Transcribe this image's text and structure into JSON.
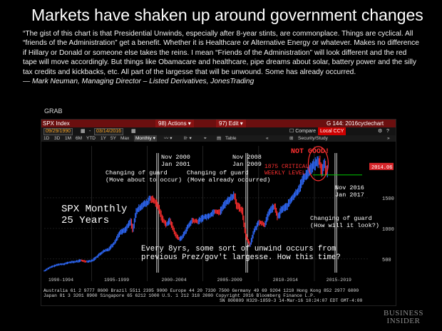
{
  "slide": {
    "title": "Markets have shaken up around government changes",
    "quote": "“The gist of this chart is that Presidential Unwinds, especially after 8-year stints, are commonplace. Things are cyclical.  All “friends of the Administration” get a benefit. Whether it is Healthcare or Alternative Energy or whatever. Makes no difference if Hillary or Donald or someone else takes the reins. I mean “Friends of the Administration” will look different and the red tape will move accordingly. But things like Obamacare and healthcare, pipe dreams about solar, battery power and the silly tax credits and kickbacks, etc.  All part of the largesse that will be unwound.  Some has already occurred.",
    "attribution": "— Mark Neuman, Managing Director – Listed Derivatives, JonesTrading",
    "grab_label": "GRAB",
    "publisher": [
      "BUSINESS",
      "INSIDER"
    ]
  },
  "terminal": {
    "ticker": "SPX Index",
    "actions_menu": "98) Actions ▾",
    "edit_menu": "97) Edit ▾",
    "page_code": "G 144: 2016cyclechart",
    "start_date": "09/29/1990",
    "end_date": "03/14/2016",
    "compare_label": "☐ Compare",
    "currency": "Local CCY",
    "security_study": "Security/Study",
    "table_label": "Table",
    "periods": [
      "1D",
      "3D",
      "1M",
      "6M",
      "YTD",
      "1Y",
      "5Y",
      "Max"
    ],
    "frequency": "Monthly ▾",
    "footer_line1": "Australia 61 2 9777 8600 Brazil 5511 2395 9000 Europe 44 20 7330 7500 Germany 49 69 9204 1210 Hong Kong 852 2977 6000",
    "footer_line2": "Japan 81 3 3201 8900           Singapore 65 6212 1000    U.S. 1 212 318 2000        Copyright 2016 Bloomberg Finance L.P.",
    "footer_line3": "SN 800809 H329-1859-3 14-Mar-16 10:24:07 EDT  GMT-4:00"
  },
  "chart_data": {
    "type": "line",
    "title": "SPX Monthly 25 Years",
    "title_lines": [
      "SPX Monthly",
      "25 Years"
    ],
    "x_ticks": [
      "1990-1994",
      "1995-1999",
      "2000-2004",
      "2005-2009",
      "2010-2014",
      "2015-2019"
    ],
    "x_range": [
      1990.75,
      2019.8
    ],
    "y_ticks": [
      500,
      1000,
      1500
    ],
    "y_range": [
      300,
      2350
    ],
    "last_price": "2014.06",
    "series": [
      {
        "x": [
          1990.75,
          1991.0,
          1991.5,
          1992.0,
          1992.5,
          1993.0,
          1993.5,
          1994.0,
          1994.5,
          1995.0,
          1995.5,
          1996.0,
          1996.5,
          1997.0,
          1997.5,
          1997.8,
          1998.0,
          1998.5,
          1998.65,
          1999.0,
          1999.5,
          2000.0,
          2000.2,
          2000.7,
          2001.0,
          2001.3,
          2001.7,
          2002.0,
          2002.5,
          2002.8,
          2003.1,
          2003.5,
          2004.0,
          2004.5,
          2005.0,
          2005.5,
          2006.0,
          2006.5,
          2007.0,
          2007.5,
          2007.8,
          2008.0,
          2008.5,
          2008.8,
          2009.0,
          2009.2,
          2009.5,
          2010.0,
          2010.5,
          2011.0,
          2011.4,
          2011.7,
          2012.0,
          2012.5,
          2013.0,
          2013.5,
          2014.0,
          2014.5,
          2015.0,
          2015.4,
          2015.65,
          2015.9,
          2016.05,
          2016.2
        ],
        "values": [
          306,
          340,
          380,
          410,
          420,
          445,
          455,
          475,
          460,
          470,
          545,
          620,
          660,
          760,
          930,
          960,
          980,
          1120,
          960,
          1280,
          1380,
          1420,
          1500,
          1430,
          1330,
          1160,
          1060,
          1130,
          900,
          830,
          850,
          990,
          1130,
          1110,
          1180,
          1200,
          1280,
          1270,
          1420,
          1500,
          1550,
          1380,
          1280,
          900,
          800,
          720,
          930,
          1110,
          1060,
          1300,
          1360,
          1170,
          1310,
          1360,
          1500,
          1620,
          1820,
          1950,
          2050,
          2110,
          1920,
          2080,
          1880,
          2014
        ]
      }
    ],
    "annotations": {
      "nov2000": "Nov 2000\nJan 2001",
      "guard1": "Changing of guard\n(Move about to occur)",
      "nov2008": "Nov 2008\nJan 2009",
      "guard2": "Changing of guard\n(Move already occurred)",
      "not_good": "NOT GOOD!",
      "critical": "1875 CRITICAL\nWEEKLY LEVEL",
      "nov2016": "Nov 2016\nJan 2017",
      "guard3": "Changing of guard\n(How will it look?)",
      "unwind": "Every 8yrs, some sort of unwind occurs from\nprevious Prez/gov't largesse.  How this time?"
    },
    "colors": {
      "up": "#2f6bff",
      "down": "#ff2d2d",
      "critical_line": "#00c800",
      "annotation_red": "#ff3030",
      "price_tag": "#d9262b"
    }
  }
}
